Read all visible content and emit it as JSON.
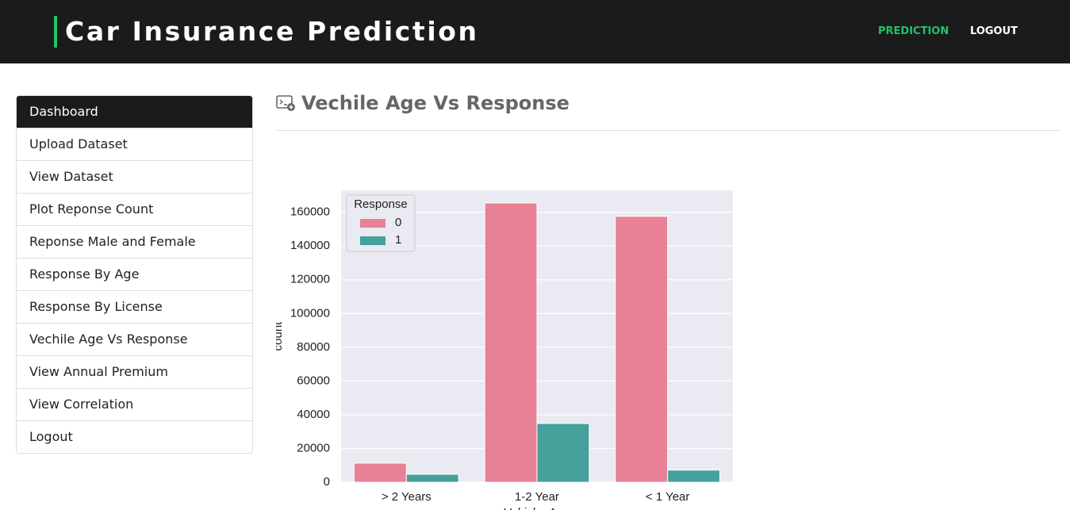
{
  "header": {
    "title": "Car Insurance Prediction",
    "nav": [
      "PREDICTION",
      "LOGOUT"
    ]
  },
  "sidebar": {
    "items": [
      "Dashboard",
      "Upload Dataset",
      "View Dataset",
      "Plot Reponse Count",
      "Reponse Male and Female",
      "Response By Age",
      "Response By License",
      "Vechile Age Vs Response",
      "View Annual Premium",
      "View Correlation",
      "Logout"
    ]
  },
  "main": {
    "heading": "Vechile Age Vs Response"
  },
  "chart_data": {
    "type": "bar",
    "categories": [
      "> 2 Years",
      "1-2 Year",
      "< 1 Year"
    ],
    "series": [
      {
        "name": "0",
        "color": "#e88195",
        "values": [
          11305,
          165510,
          157584
        ]
      },
      {
        "name": "1",
        "color": "#45a19b",
        "values": [
          4702,
          34806,
          7202
        ]
      }
    ],
    "ylim": [
      0,
      173000
    ],
    "yticks": [
      0,
      20000,
      40000,
      60000,
      80000,
      100000,
      120000,
      140000,
      160000
    ],
    "grid": true,
    "legend_title": "Response",
    "xlabel": "Vehicle_Age",
    "ylabel": "count"
  }
}
